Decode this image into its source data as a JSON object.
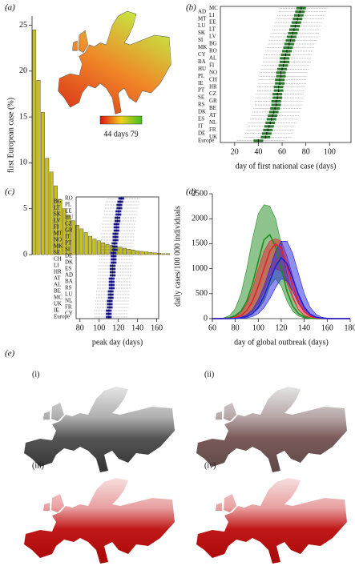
{
  "chart_data": [
    {
      "type": "bar",
      "panel_label": "(a)",
      "y_label": "first European case (%)",
      "categories": [
        null,
        null,
        null,
        null,
        null,
        null,
        null,
        null,
        null,
        null,
        null,
        null,
        null,
        null,
        null,
        null,
        null,
        null,
        null,
        null,
        null,
        null,
        null,
        null,
        null,
        null,
        null,
        null,
        null,
        null,
        null,
        null
      ],
      "values": [
        24.5,
        19,
        15.5,
        10.5,
        9,
        7.5,
        6,
        5,
        4.3,
        3.7,
        3.2,
        2.8,
        2.4,
        2,
        1.7,
        1.5,
        1.3,
        1.1,
        1,
        0.9,
        0.8,
        0.7,
        0.6,
        0.5,
        0.4,
        0.35,
        0.3,
        0.25,
        0.2,
        0.15,
        0.1,
        0.1
      ],
      "color": "#c8c020",
      "ylim": [
        0,
        26
      ],
      "yticks": [
        0,
        5,
        10,
        15,
        20,
        25
      ],
      "colorbar_label": "44 days 79"
    },
    {
      "type": "boxplot",
      "panel_label": "(b)",
      "x_label": "day of first national case (days)",
      "categories": [
        "MC",
        "AD",
        "LI",
        "MT",
        "EE",
        "LU",
        "LT",
        "SK",
        "LV",
        "SI",
        "BG",
        "MK",
        "RO",
        "CY",
        "AL",
        "BA",
        "FI",
        "HU",
        "NO",
        "PL",
        "CH",
        "IE",
        "HR",
        "PT",
        "CZ",
        "SE",
        "GR",
        "RS",
        "BE",
        "DK",
        "AT",
        "ES",
        "NL",
        "IT",
        "FR",
        "DE",
        "UK",
        "Europe"
      ],
      "lo": [
        58,
        57,
        56,
        55,
        54,
        53,
        52,
        51,
        50,
        49,
        48,
        47,
        46,
        45,
        44,
        44,
        43,
        42,
        41,
        41,
        40,
        40,
        39,
        39,
        38,
        38,
        37,
        37,
        36,
        35,
        34,
        33,
        32,
        31,
        30,
        29,
        28,
        22
      ],
      "q1": [
        72,
        71,
        70,
        69,
        68,
        67,
        66,
        65,
        64,
        63,
        62,
        61,
        60,
        59,
        58,
        58,
        57,
        56,
        55,
        55,
        54,
        54,
        53,
        53,
        52,
        52,
        51,
        51,
        50,
        49,
        48,
        47,
        46,
        45,
        44,
        43,
        42,
        36
      ],
      "median": [
        76,
        75,
        74,
        73,
        72,
        71,
        70,
        69,
        68,
        67,
        66,
        65,
        64,
        63,
        62,
        62,
        61,
        60,
        59,
        59,
        58,
        58,
        57,
        57,
        56,
        56,
        55,
        55,
        54,
        53,
        52,
        51,
        50,
        49,
        48,
        47,
        46,
        40
      ],
      "q3": [
        80,
        79,
        78,
        77,
        76,
        75,
        74,
        73,
        72,
        71,
        70,
        69,
        68,
        67,
        66,
        66,
        65,
        64,
        63,
        63,
        62,
        62,
        61,
        61,
        60,
        60,
        59,
        59,
        58,
        57,
        56,
        55,
        54,
        53,
        52,
        51,
        50,
        44
      ],
      "hi": [
        98,
        97,
        96,
        95,
        94,
        93,
        92,
        91,
        90,
        89,
        88,
        87,
        86,
        85,
        84,
        84,
        83,
        82,
        81,
        81,
        80,
        80,
        79,
        79,
        78,
        78,
        77,
        77,
        76,
        75,
        74,
        73,
        72,
        71,
        70,
        69,
        68,
        62
      ],
      "color": "#2e7d2e",
      "xlim": [
        8,
        118
      ],
      "xticks": [
        20,
        40,
        60,
        80,
        100
      ]
    },
    {
      "type": "boxplot",
      "panel_label": "(c)",
      "x_label": "peak day (days)",
      "categories": [
        "RO",
        "BG",
        "PL",
        "LT",
        "EE",
        "SK",
        "HU",
        "LV",
        "CZ",
        "FI",
        "GR",
        "MT",
        "IT",
        "NO",
        "PT",
        "MK",
        "SI",
        "SE",
        "DE",
        "CH",
        "DK",
        "LI",
        "ES",
        "HR",
        "AD",
        "AT",
        "BA",
        "AL",
        "RS",
        "BE",
        "LU",
        "MC",
        "NL",
        "UK",
        "FR",
        "IE",
        "CY",
        "Europe"
      ],
      "lo": [
        108,
        107,
        106,
        106,
        105,
        105,
        104,
        104,
        103,
        103,
        103,
        102,
        102,
        102,
        101,
        101,
        101,
        100,
        100,
        100,
        100,
        99,
        99,
        99,
        99,
        98,
        98,
        98,
        98,
        97,
        97,
        97,
        96,
        96,
        96,
        95,
        95,
        95
      ],
      "q1": [
        120,
        119,
        118,
        118,
        117,
        117,
        116,
        116,
        115,
        115,
        115,
        114,
        114,
        114,
        113,
        113,
        113,
        112,
        112,
        112,
        112,
        111,
        111,
        111,
        111,
        110,
        110,
        110,
        110,
        109,
        109,
        109,
        108,
        108,
        108,
        107,
        107,
        107
      ],
      "median": [
        123,
        122,
        121,
        121,
        120,
        120,
        119,
        119,
        118,
        118,
        118,
        117,
        117,
        117,
        116,
        116,
        116,
        115,
        115,
        115,
        115,
        114,
        114,
        114,
        114,
        113,
        113,
        113,
        113,
        112,
        112,
        112,
        111,
        111,
        111,
        110,
        110,
        110
      ],
      "q3": [
        126,
        125,
        124,
        124,
        123,
        123,
        122,
        122,
        121,
        121,
        121,
        120,
        120,
        120,
        119,
        119,
        119,
        118,
        118,
        118,
        118,
        117,
        117,
        117,
        117,
        116,
        116,
        116,
        116,
        115,
        115,
        115,
        114,
        114,
        114,
        113,
        113,
        113
      ],
      "hi": [
        143,
        142,
        141,
        141,
        140,
        140,
        139,
        139,
        138,
        138,
        138,
        137,
        137,
        137,
        136,
        136,
        136,
        135,
        135,
        135,
        135,
        134,
        134,
        134,
        134,
        133,
        133,
        133,
        133,
        132,
        132,
        132,
        131,
        131,
        131,
        130,
        130,
        130
      ],
      "color": "#1a1a9a",
      "xlim": [
        76,
        162
      ],
      "xticks": [
        80,
        100,
        120,
        140,
        160
      ]
    },
    {
      "type": "line",
      "panel_label": "(d)",
      "x_label": "day of global outbreak (days)",
      "y_label": "daily cases/100 000 individuals",
      "x": [
        60,
        65,
        70,
        75,
        80,
        85,
        90,
        95,
        100,
        105,
        110,
        115,
        120,
        125,
        130,
        135,
        140,
        145,
        150,
        155,
        160,
        165,
        170,
        175,
        180
      ],
      "series": [
        {
          "color": "#1f8a1f",
          "values": [
            0,
            0,
            5,
            20,
            60,
            150,
            350,
            700,
            1150,
            1580,
            1680,
            1450,
            1000,
            550,
            250,
            100,
            35,
            10,
            3,
            0,
            0,
            0,
            0,
            0,
            0
          ],
          "upper": [
            0,
            2,
            15,
            60,
            200,
            500,
            1000,
            1600,
            2100,
            2280,
            2250,
            2000,
            1500,
            900,
            450,
            180,
            60,
            20,
            5,
            0,
            0,
            0,
            0,
            0,
            0
          ],
          "lower": [
            0,
            0,
            0,
            0,
            0,
            10,
            40,
            100,
            200,
            350,
            650,
            800,
            650,
            350,
            150,
            50,
            15,
            5,
            0,
            0,
            0,
            0,
            0,
            0,
            0
          ]
        },
        {
          "color": "#e8202a",
          "values": [
            0,
            0,
            0,
            5,
            20,
            60,
            160,
            350,
            650,
            1000,
            1350,
            1500,
            1400,
            1050,
            650,
            330,
            140,
            50,
            15,
            5,
            0,
            0,
            0,
            0,
            0
          ],
          "upper": [
            0,
            0,
            2,
            10,
            40,
            120,
            300,
            600,
            1000,
            1350,
            1550,
            1600,
            1550,
            1250,
            850,
            450,
            200,
            80,
            25,
            8,
            2,
            0,
            0,
            0,
            0
          ],
          "lower": [
            0,
            0,
            0,
            0,
            5,
            20,
            60,
            150,
            300,
            550,
            850,
            1000,
            950,
            700,
            400,
            180,
            70,
            20,
            5,
            0,
            0,
            0,
            0,
            0,
            0
          ]
        },
        {
          "color": "#2020e0",
          "values": [
            0,
            0,
            0,
            0,
            5,
            15,
            40,
            100,
            230,
            450,
            750,
            1050,
            1220,
            1100,
            800,
            480,
            230,
            90,
            30,
            10,
            3,
            0,
            0,
            0,
            0
          ],
          "upper": [
            0,
            0,
            0,
            2,
            10,
            30,
            80,
            180,
            380,
            650,
            1000,
            1350,
            1550,
            1550,
            1300,
            900,
            500,
            230,
            90,
            30,
            10,
            3,
            0,
            0,
            0
          ],
          "lower": [
            0,
            0,
            0,
            0,
            0,
            5,
            15,
            40,
            100,
            220,
            400,
            620,
            800,
            750,
            550,
            300,
            130,
            50,
            15,
            5,
            0,
            0,
            0,
            0,
            0
          ]
        }
      ],
      "xlim": [
        60,
        180
      ],
      "ylim": [
        0,
        2500
      ],
      "xticks": [
        60,
        80,
        100,
        120,
        140,
        160,
        180
      ],
      "yticks": [
        0,
        500,
        1000,
        1500,
        2000,
        2500
      ]
    }
  ],
  "panel_e": {
    "panel_label": "(e)",
    "maps": [
      "(i)",
      "(ii)",
      "(iii)",
      "(iv)"
    ]
  }
}
